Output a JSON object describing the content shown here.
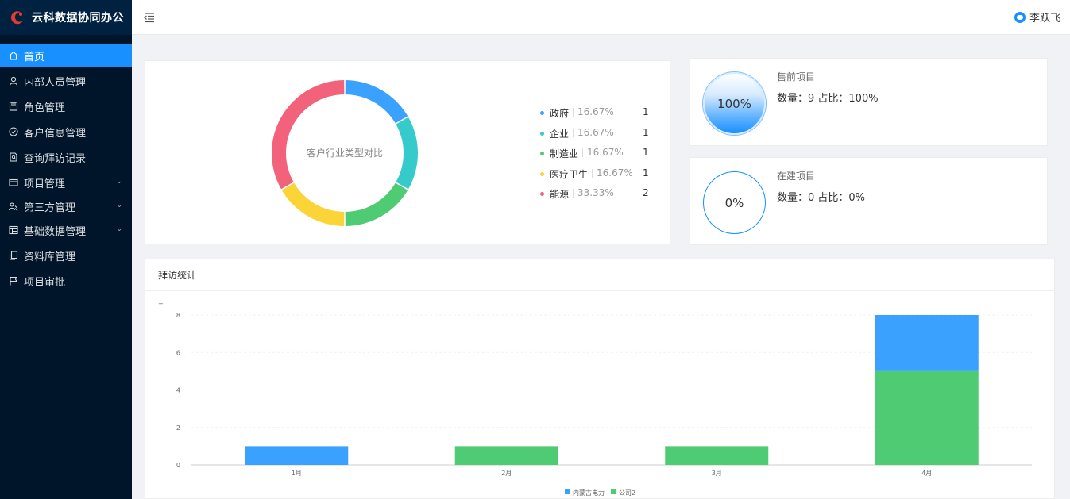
{
  "app": {
    "title": "云科数据协同办公"
  },
  "sidebar": {
    "items": [
      {
        "label": "首页",
        "icon": "home-icon",
        "active": true,
        "expandable": false
      },
      {
        "label": "内部人员管理",
        "icon": "user-icon",
        "active": false,
        "expandable": false
      },
      {
        "label": "角色管理",
        "icon": "role-icon",
        "active": false,
        "expandable": false
      },
      {
        "label": "客户信息管理",
        "icon": "check-circle-icon",
        "active": false,
        "expandable": false
      },
      {
        "label": "查询拜访记录",
        "icon": "file-search-icon",
        "active": false,
        "expandable": false
      },
      {
        "label": "项目管理",
        "icon": "credit-card-icon",
        "active": false,
        "expandable": true
      },
      {
        "label": "第三方管理",
        "icon": "team-icon",
        "active": false,
        "expandable": true
      },
      {
        "label": "基础数据管理",
        "icon": "table-icon",
        "active": false,
        "expandable": true
      },
      {
        "label": "资料库管理",
        "icon": "copy-icon",
        "active": false,
        "expandable": false
      },
      {
        "label": "项目审批",
        "icon": "flag-icon",
        "active": false,
        "expandable": false
      }
    ]
  },
  "header": {
    "user_name": "李跃飞"
  },
  "pie": {
    "center_label": "客户行业类型对比",
    "legend": [
      {
        "name": "政府",
        "percent": "16.67%",
        "count": "1",
        "color": "#3aa1ff"
      },
      {
        "name": "企业",
        "percent": "16.67%",
        "count": "1",
        "color": "#36cbcb"
      },
      {
        "name": "制造业",
        "percent": "16.67%",
        "count": "1",
        "color": "#4ecb73"
      },
      {
        "name": "医疗卫生",
        "percent": "16.67%",
        "count": "1",
        "color": "#fbd437"
      },
      {
        "name": "能源",
        "percent": "33.33%",
        "count": "2",
        "color": "#f2637b"
      }
    ]
  },
  "stats": [
    {
      "title": "售前项目",
      "percent_label": "100%",
      "value": "数量：9 占比：100%",
      "filled": true
    },
    {
      "title": "在建项目",
      "percent_label": "0%",
      "value": "数量：0 占比：0%",
      "filled": false
    }
  ],
  "bar": {
    "title": "拜访统计"
  },
  "chart_data": [
    {
      "type": "pie",
      "title": "客户行业类型对比",
      "categories": [
        "政府",
        "企业",
        "制造业",
        "医疗卫生",
        "能源"
      ],
      "values": [
        1,
        1,
        1,
        1,
        2
      ],
      "colors": [
        "#3aa1ff",
        "#36cbcb",
        "#4ecb73",
        "#fbd437",
        "#f2637b"
      ]
    },
    {
      "type": "bar",
      "title": "拜访统计",
      "stacked": true,
      "categories": [
        "1月",
        "2月",
        "3月",
        "4月"
      ],
      "series": [
        {
          "name": "内蒙古电力",
          "values": [
            1,
            0,
            0,
            3
          ],
          "color": "#3aa1ff"
        },
        {
          "name": "公司2",
          "values": [
            0,
            1,
            1,
            5
          ],
          "color": "#4ecb73"
        }
      ],
      "ylim": [
        0,
        8
      ],
      "yticks": [
        0,
        2,
        4,
        6,
        8
      ],
      "y_unit_label": "=",
      "grid": true,
      "legend": "bottom"
    }
  ]
}
